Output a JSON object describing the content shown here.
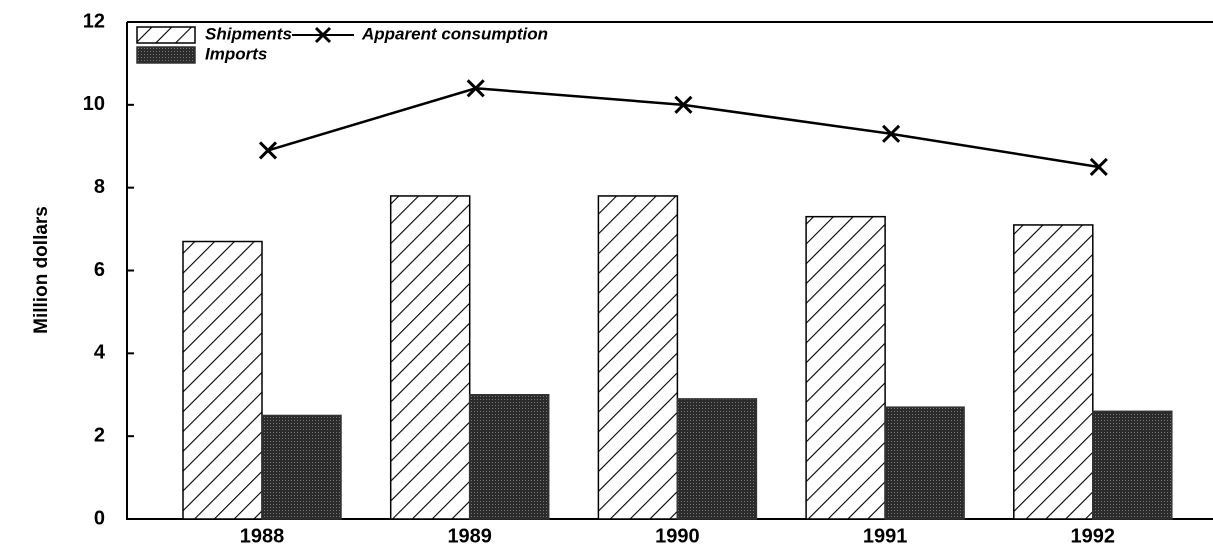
{
  "chart_data": {
    "type": "bar",
    "y_label": "Million dollars",
    "categories": [
      "1988",
      "1989",
      "1990",
      "1991",
      "1992"
    ],
    "series": [
      {
        "name": "Shipments",
        "type": "bar",
        "color": "#000000",
        "values": [
          6.7,
          7.8,
          7.8,
          7.3,
          7.1
        ]
      },
      {
        "name": "Imports",
        "type": "bar",
        "color": "#333333",
        "values": [
          2.5,
          3.0,
          2.9,
          2.7,
          2.6
        ]
      },
      {
        "name": "Apparent consumption",
        "type": "line",
        "color": "#000000",
        "values": [
          8.9,
          10.4,
          10.0,
          9.3,
          8.5
        ]
      }
    ],
    "ylim": [
      0,
      12
    ],
    "yticks": [
      0,
      2,
      4,
      6,
      8,
      10,
      12
    ],
    "grid": false,
    "legend": "top-left"
  }
}
